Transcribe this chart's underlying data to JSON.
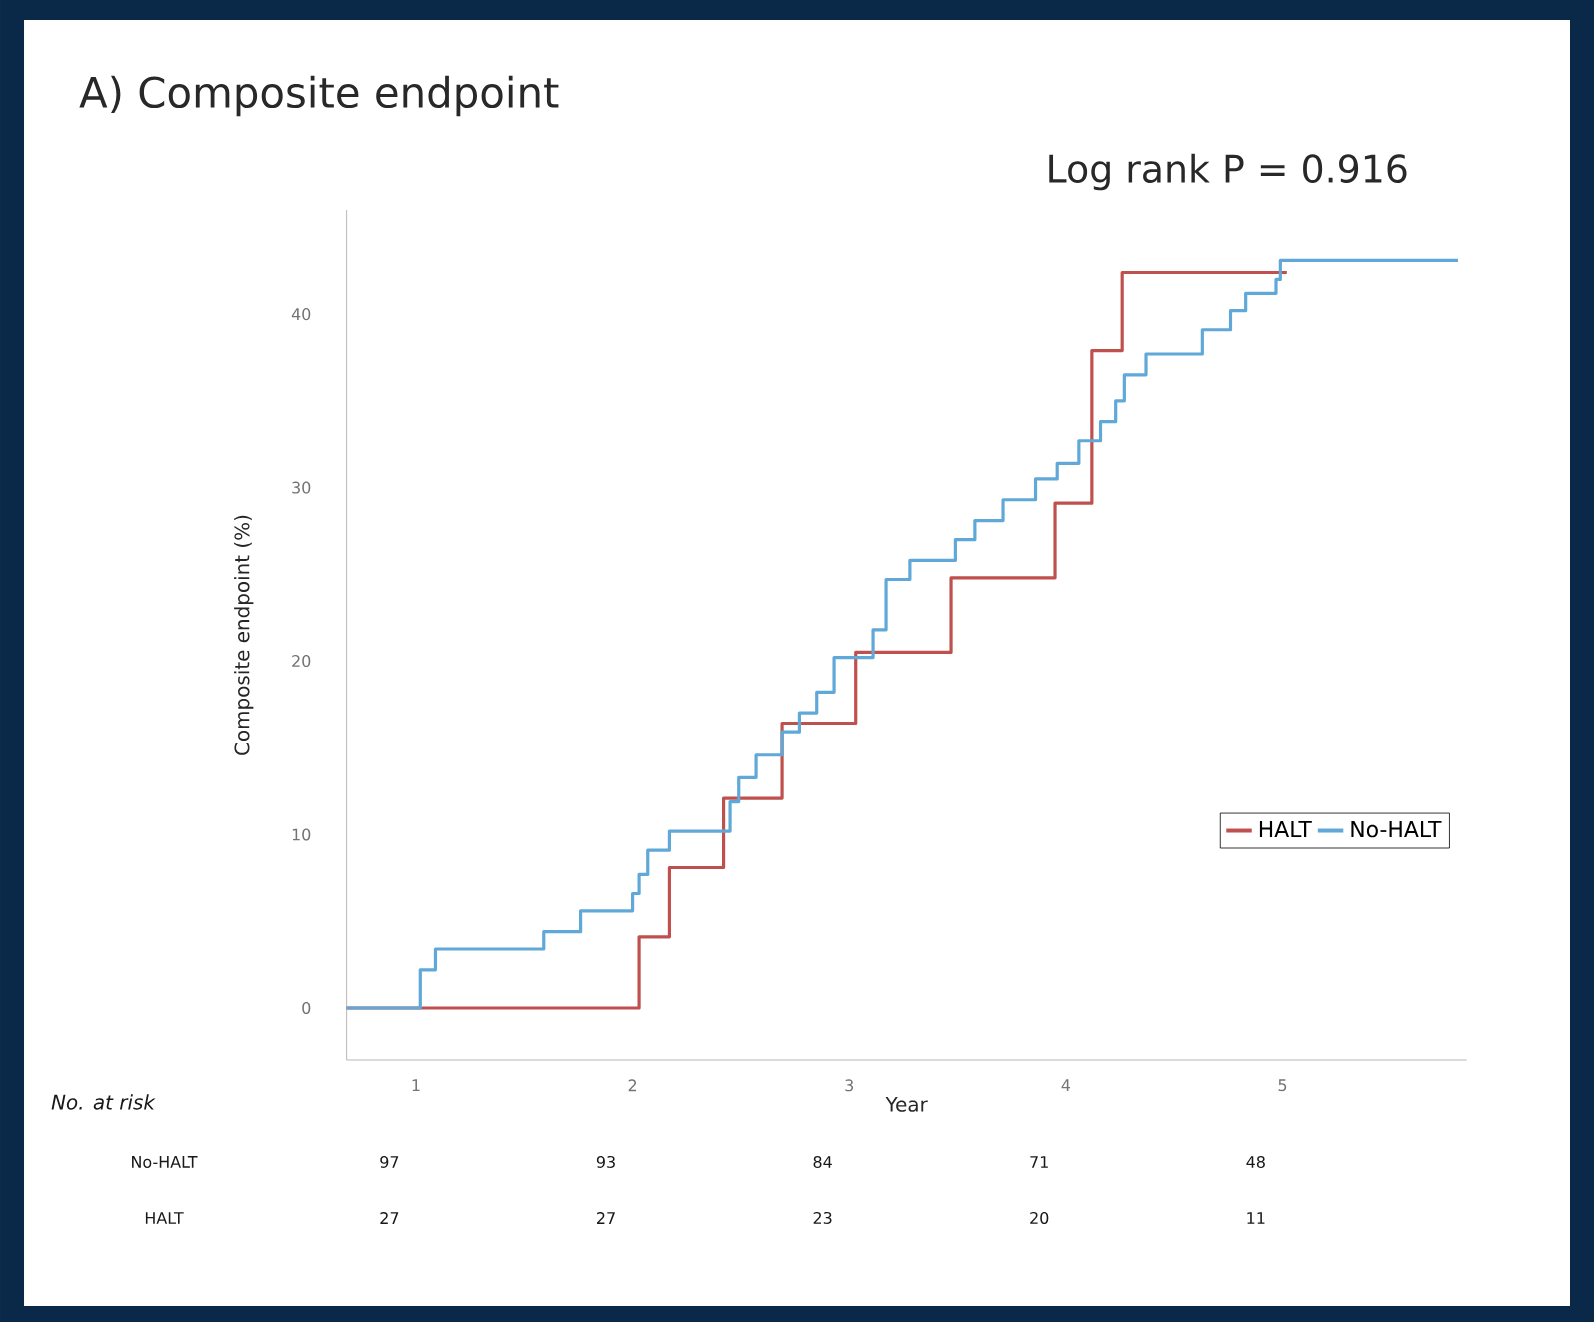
{
  "chart_data": {
    "type": "step",
    "title": "A) Composite endpoint",
    "xlabel": "Year",
    "ylabel": "Composite endpoint (%)",
    "xlim": [
      0.68,
      5.85
    ],
    "ylim": [
      -3,
      46
    ],
    "xticks": [
      1,
      2,
      3,
      4,
      5
    ],
    "yticks": [
      0,
      10,
      20,
      30,
      40
    ],
    "legend": "right",
    "grid": false,
    "series": [
      {
        "name": "HALT",
        "color": "#c0504d",
        "x": [
          0.68,
          2.03,
          2.17,
          2.42,
          2.69,
          3.03,
          3.47,
          3.95,
          4.12,
          4.26,
          5.02
        ],
        "values": [
          0,
          4.1,
          8.1,
          12.1,
          16.4,
          20.5,
          24.8,
          29.1,
          37.9,
          42.4,
          42.4
        ]
      },
      {
        "name": "No-HALT",
        "color": "#5fa8d8",
        "x": [
          0.68,
          1.02,
          1.09,
          1.59,
          1.76,
          2.0,
          2.03,
          2.07,
          2.17,
          2.45,
          2.49,
          2.57,
          2.69,
          2.77,
          2.85,
          2.93,
          3.11,
          3.17,
          3.28,
          3.49,
          3.58,
          3.71,
          3.86,
          3.96,
          4.06,
          4.16,
          4.23,
          4.27,
          4.37,
          4.63,
          4.76,
          4.83,
          4.97,
          4.99,
          5.81
        ],
        "values": [
          0,
          2.2,
          3.4,
          4.4,
          5.6,
          6.6,
          7.7,
          9.1,
          10.2,
          11.9,
          13.3,
          14.6,
          15.9,
          17.0,
          18.2,
          20.2,
          21.8,
          24.7,
          25.8,
          27.0,
          28.1,
          29.3,
          30.5,
          31.4,
          32.7,
          33.8,
          35.0,
          36.5,
          37.7,
          39.1,
          40.2,
          41.2,
          42.0,
          43.1,
          43.1
        ]
      }
    ],
    "annotations": [
      "Log rank P = 0.916",
      "No. at risk",
      "No-HALT",
      "97",
      "93",
      "84",
      "71",
      "48",
      "HALT",
      "27",
      "27",
      "23",
      "20",
      "11"
    ]
  }
}
